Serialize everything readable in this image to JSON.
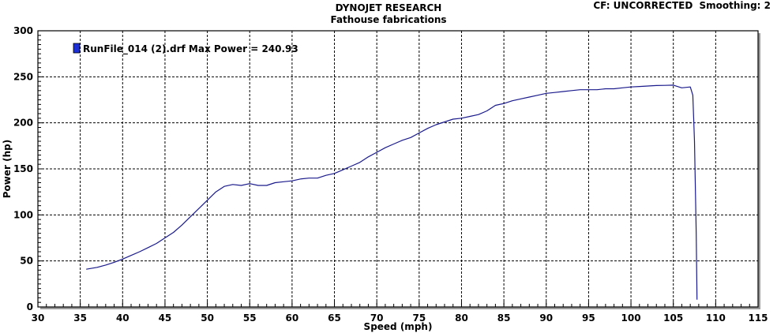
{
  "header": {
    "title": "DYNOJET RESEARCH",
    "subtitle": "Fathouse fabrications",
    "cf_label": "CF: UNCORRECTED",
    "smoothing_label": "Smoothing: 2"
  },
  "chart_data": {
    "type": "line",
    "title": "DYNOJET RESEARCH",
    "subtitle": "Fathouse fabrications",
    "xlabel": "Speed (mph)",
    "ylabel": "Power (hp)",
    "xlim": [
      30,
      115
    ],
    "ylim": [
      0,
      300
    ],
    "x_ticks": [
      30,
      35,
      40,
      45,
      50,
      55,
      60,
      65,
      70,
      75,
      80,
      85,
      90,
      95,
      100,
      105,
      110,
      115
    ],
    "y_ticks": [
      0,
      50,
      100,
      150,
      200,
      250,
      300
    ],
    "grid": true,
    "legend_position": "top-left",
    "colors": {
      "series": "#1a1a8c",
      "legend_box": "#1d2fd6",
      "grid": "#000000"
    },
    "series": [
      {
        "name": "RunFile_014 (2).drf Max Power = 240.93",
        "x": [
          35.7,
          37,
          38,
          39,
          40,
          41,
          42,
          43,
          44,
          45,
          46,
          47,
          48,
          49,
          50,
          51,
          52,
          53,
          54,
          55,
          56,
          57,
          58,
          59,
          60,
          61,
          62,
          63,
          64,
          65,
          66,
          67,
          68,
          69,
          70,
          71,
          72,
          73,
          74,
          75,
          76,
          77,
          78,
          79,
          80,
          81,
          82,
          83,
          84,
          85,
          86,
          87,
          88,
          89,
          90,
          91,
          92,
          93,
          94,
          95,
          96,
          97,
          98,
          99,
          100,
          101,
          102,
          103,
          104,
          105,
          106,
          107,
          107.3,
          107.5,
          107.7,
          107.8
        ],
        "y": [
          41,
          43,
          45.5,
          48.5,
          52,
          56,
          60,
          64.5,
          69,
          75,
          81,
          89,
          98,
          107,
          116,
          125,
          131,
          133,
          132,
          134,
          132,
          132,
          135,
          136,
          137,
          139,
          140,
          140,
          143,
          145,
          149,
          153,
          157,
          163,
          168,
          173,
          177,
          181,
          184,
          189,
          194,
          198,
          201,
          204,
          205,
          207,
          209,
          213,
          219,
          221,
          224,
          226,
          228,
          230,
          232,
          233,
          234,
          235,
          236,
          236,
          236,
          237,
          237,
          238,
          239,
          239.5,
          240,
          240.5,
          240.7,
          240.9,
          238,
          239,
          230,
          180,
          80,
          8
        ]
      }
    ]
  }
}
